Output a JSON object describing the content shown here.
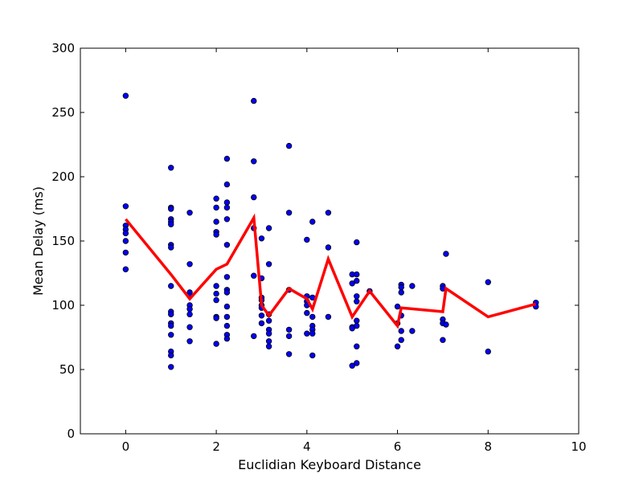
{
  "chart_data": {
    "type": "scatter",
    "title": "",
    "xlabel": "Euclidian Keyboard Distance",
    "ylabel": "Mean Delay (ms)",
    "xlim": [
      -1,
      10
    ],
    "ylim": [
      0,
      300
    ],
    "xticks": [
      0,
      2,
      4,
      6,
      8,
      10
    ],
    "yticks": [
      0,
      50,
      100,
      150,
      200,
      250,
      300
    ],
    "grid": false,
    "colors": {
      "points": "#0000ff",
      "point_edge": "#000000",
      "line": "#ff0000"
    },
    "series": [
      {
        "kind": "scatter",
        "points": [
          [
            0,
            263
          ],
          [
            0,
            177
          ],
          [
            0,
            162
          ],
          [
            0,
            159
          ],
          [
            0,
            156
          ],
          [
            0,
            150
          ],
          [
            0,
            141
          ],
          [
            0,
            128
          ],
          [
            1,
            207
          ],
          [
            1,
            176
          ],
          [
            1,
            175
          ],
          [
            1,
            167
          ],
          [
            1,
            165
          ],
          [
            1,
            163
          ],
          [
            1,
            147
          ],
          [
            1,
            145
          ],
          [
            1,
            115
          ],
          [
            1,
            95
          ],
          [
            1,
            93
          ],
          [
            1,
            86
          ],
          [
            1,
            84
          ],
          [
            1,
            77
          ],
          [
            1,
            64
          ],
          [
            1,
            61
          ],
          [
            1,
            52
          ],
          [
            1.414,
            172
          ],
          [
            1.414,
            132
          ],
          [
            1.414,
            110
          ],
          [
            1.414,
            107
          ],
          [
            1.414,
            100
          ],
          [
            1.414,
            97
          ],
          [
            1.414,
            93
          ],
          [
            1.414,
            83
          ],
          [
            1.414,
            72
          ],
          [
            2,
            183
          ],
          [
            2,
            176
          ],
          [
            2,
            165
          ],
          [
            2,
            157
          ],
          [
            2,
            155
          ],
          [
            2,
            115
          ],
          [
            2,
            109
          ],
          [
            2,
            104
          ],
          [
            2,
            91
          ],
          [
            2,
            90
          ],
          [
            2,
            70
          ],
          [
            2.236,
            214
          ],
          [
            2.236,
            194
          ],
          [
            2.236,
            180
          ],
          [
            2.236,
            176
          ],
          [
            2.236,
            167
          ],
          [
            2.236,
            147
          ],
          [
            2.236,
            122
          ],
          [
            2.236,
            112
          ],
          [
            2.236,
            110
          ],
          [
            2.236,
            99
          ],
          [
            2.236,
            91
          ],
          [
            2.236,
            84
          ],
          [
            2.236,
            77
          ],
          [
            2.236,
            74
          ],
          [
            2.828,
            259
          ],
          [
            2.828,
            212
          ],
          [
            2.828,
            184
          ],
          [
            2.828,
            160
          ],
          [
            2.828,
            123
          ],
          [
            2.828,
            76
          ],
          [
            3,
            152
          ],
          [
            3,
            121
          ],
          [
            3,
            106
          ],
          [
            3,
            104
          ],
          [
            3,
            100
          ],
          [
            3,
            98
          ],
          [
            3,
            92
          ],
          [
            3,
            86
          ],
          [
            3.162,
            160
          ],
          [
            3.162,
            132
          ],
          [
            3.162,
            93
          ],
          [
            3.162,
            88
          ],
          [
            3.162,
            81
          ],
          [
            3.162,
            78
          ],
          [
            3.162,
            72
          ],
          [
            3.162,
            68
          ],
          [
            3.606,
            224
          ],
          [
            3.606,
            172
          ],
          [
            3.606,
            112
          ],
          [
            3.606,
            81
          ],
          [
            3.606,
            76
          ],
          [
            3.606,
            62
          ],
          [
            4,
            151
          ],
          [
            4,
            107
          ],
          [
            4,
            103
          ],
          [
            4,
            100
          ],
          [
            4,
            94
          ],
          [
            4,
            78
          ],
          [
            4.123,
            165
          ],
          [
            4.123,
            106
          ],
          [
            4.123,
            91
          ],
          [
            4.123,
            84
          ],
          [
            4.123,
            81
          ],
          [
            4.123,
            78
          ],
          [
            4.123,
            61
          ],
          [
            4.472,
            172
          ],
          [
            4.472,
            145
          ],
          [
            4.472,
            91
          ],
          [
            5,
            124
          ],
          [
            5,
            117
          ],
          [
            5,
            83
          ],
          [
            5,
            82
          ],
          [
            5,
            53
          ],
          [
            5.099,
            149
          ],
          [
            5.099,
            124
          ],
          [
            5.099,
            119
          ],
          [
            5.099,
            107
          ],
          [
            5.099,
            103
          ],
          [
            5.099,
            88
          ],
          [
            5.099,
            84
          ],
          [
            5.099,
            68
          ],
          [
            5.099,
            55
          ],
          [
            5.385,
            111
          ],
          [
            6,
            99
          ],
          [
            6,
            86
          ],
          [
            6,
            68
          ],
          [
            6.083,
            116
          ],
          [
            6.083,
            114
          ],
          [
            6.083,
            110
          ],
          [
            6.083,
            92
          ],
          [
            6.083,
            80
          ],
          [
            6.083,
            73
          ],
          [
            6.325,
            115
          ],
          [
            6.325,
            80
          ],
          [
            7,
            115
          ],
          [
            7,
            113
          ],
          [
            7,
            89
          ],
          [
            7,
            86
          ],
          [
            7,
            73
          ],
          [
            7.071,
            140
          ],
          [
            7.071,
            85
          ],
          [
            8,
            118
          ],
          [
            8,
            64
          ],
          [
            9.055,
            102
          ],
          [
            9.055,
            99
          ]
        ]
      },
      {
        "kind": "line",
        "points": [
          [
            0,
            167
          ],
          [
            1,
            124
          ],
          [
            1.414,
            105
          ],
          [
            2,
            128
          ],
          [
            2.236,
            132
          ],
          [
            2.828,
            168
          ],
          [
            3,
            100
          ],
          [
            3.162,
            92
          ],
          [
            3.606,
            113
          ],
          [
            4,
            105
          ],
          [
            4.123,
            97
          ],
          [
            4.472,
            136
          ],
          [
            5,
            91
          ],
          [
            5.385,
            111
          ],
          [
            6,
            84
          ],
          [
            6.083,
            98
          ],
          [
            7,
            95
          ],
          [
            7.071,
            113
          ],
          [
            8,
            91
          ],
          [
            9.055,
            101
          ]
        ]
      }
    ]
  }
}
